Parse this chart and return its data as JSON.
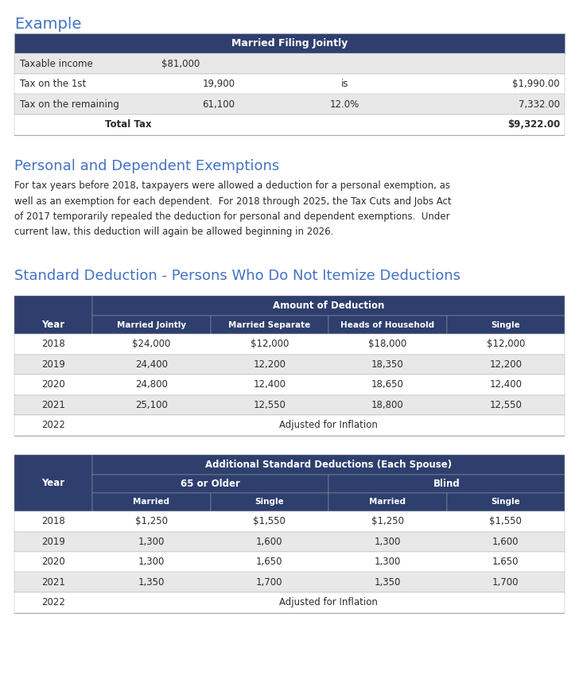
{
  "title_example": "Example",
  "title_exemptions": "Personal and Dependent Exemptions",
  "title_standard": "Standard Deduction - Persons Who Do Not Itemize Deductions",
  "header_color": "#2e3f6e",
  "header_text_color": "#ffffff",
  "title_color": "#4472c4",
  "row_alt_color": "#e8e8e8",
  "row_white_color": "#ffffff",
  "text_color": "#2c2c2c",
  "border_color": "#aaaaaa",
  "body_text": "For tax years before 2018, taxpayers were allowed a deduction for a personal exemption, as well as an exemption for each dependent.  For 2018 through 2025, the Tax Cuts and Jobs Act of 2017 temporarily repealed the deduction for personal and dependent exemptions.  Under current law, this deduction will again be allowed beginning in 2026.",
  "example_table": {
    "header": "Married Filing Jointly",
    "rows": [
      {
        "label": "Taxable income",
        "col2": "$81,000",
        "col3": "",
        "col4": ""
      },
      {
        "label": "Tax on the 1st",
        "col2": "19,900",
        "col3": "is",
        "col4": "$1,990.00"
      },
      {
        "label": "Tax on the remaining",
        "col2": "61,100",
        "col3": "12.0%",
        "col4": "7,332.00"
      },
      {
        "label": "Total Tax",
        "col2": "",
        "col3": "",
        "col4": "$9,322.00"
      }
    ]
  },
  "standard_table": {
    "col1_header": "Year",
    "group_header": "Amount of Deduction",
    "sub_headers": [
      "Married Jointly",
      "Married Separate",
      "Heads of Household",
      "Single"
    ],
    "rows": [
      {
        "year": "2018",
        "vals": [
          "$24,000",
          "$12,000",
          "$18,000",
          "$12,000"
        ]
      },
      {
        "year": "2019",
        "vals": [
          "24,400",
          "12,200",
          "18,350",
          "12,200"
        ]
      },
      {
        "year": "2020",
        "vals": [
          "24,800",
          "12,400",
          "18,650",
          "12,400"
        ]
      },
      {
        "year": "2021",
        "vals": [
          "25,100",
          "12,550",
          "18,800",
          "12,550"
        ]
      },
      {
        "year": "2022",
        "vals": [
          "Adjusted for Inflation",
          "",
          "",
          ""
        ]
      }
    ]
  },
  "additional_table": {
    "col1_header": "Year",
    "group_header": "Additional Standard Deductions (Each Spouse)",
    "sub_group_headers": [
      "65 or Older",
      "Blind"
    ],
    "sub_headers": [
      "Married",
      "Single",
      "Married",
      "Single"
    ],
    "rows": [
      {
        "year": "2018",
        "vals": [
          "$1,250",
          "$1,550",
          "$1,250",
          "$1,550"
        ]
      },
      {
        "year": "2019",
        "vals": [
          "1,300",
          "1,600",
          "1,300",
          "1,600"
        ]
      },
      {
        "year": "2020",
        "vals": [
          "1,300",
          "1,650",
          "1,300",
          "1,650"
        ]
      },
      {
        "year": "2021",
        "vals": [
          "1,350",
          "1,700",
          "1,350",
          "1,700"
        ]
      },
      {
        "year": "2022",
        "vals": [
          "Adjusted for Inflation",
          "",
          "",
          ""
        ]
      }
    ]
  }
}
